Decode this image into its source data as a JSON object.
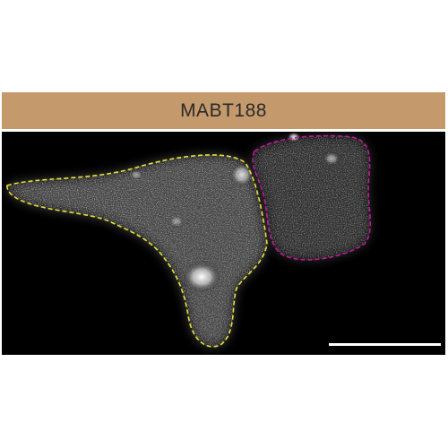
{
  "figure": {
    "label": "MABT188",
    "header_color": "#c49a6c",
    "panel_background": "#000000",
    "outlines": [
      {
        "name": "cell-outline-left",
        "color": "#e8e033",
        "style": "dashed"
      },
      {
        "name": "cell-outline-right",
        "color": "#c0189a",
        "style": "dashed"
      }
    ],
    "scale_bar_color": "#ffffff"
  }
}
